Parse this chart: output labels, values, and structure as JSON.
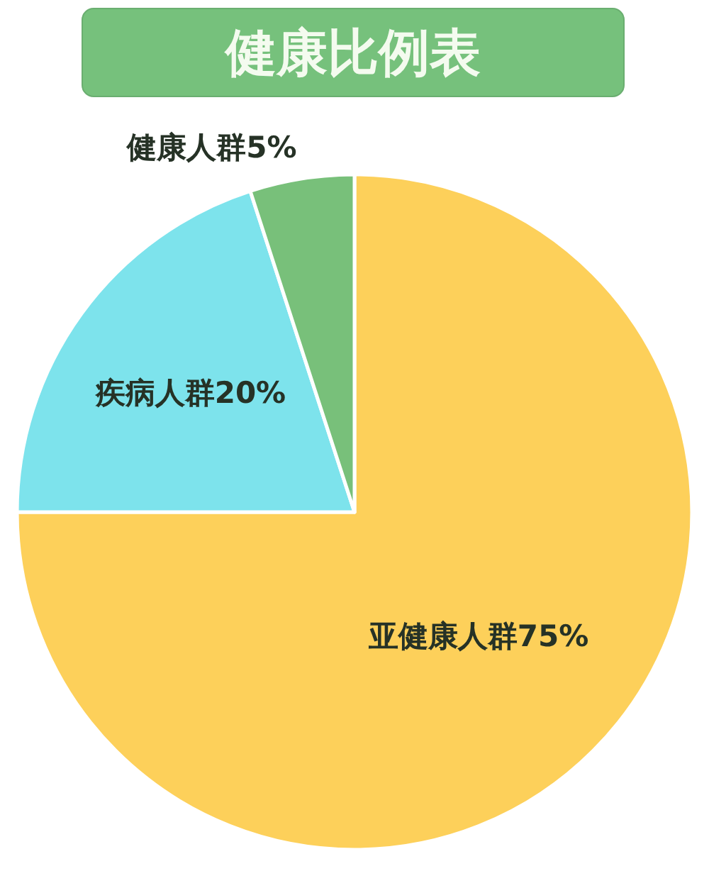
{
  "chart_data": {
    "type": "pie",
    "title": "健康比例表",
    "categories": [
      "亚健康人群",
      "疾病人群",
      "健康人群"
    ],
    "values": [
      75,
      20,
      5
    ],
    "colors": [
      "#fdd05a",
      "#7de3ec",
      "#78c07a"
    ],
    "value_labels": [
      "75%",
      "20%",
      "5%"
    ]
  }
}
